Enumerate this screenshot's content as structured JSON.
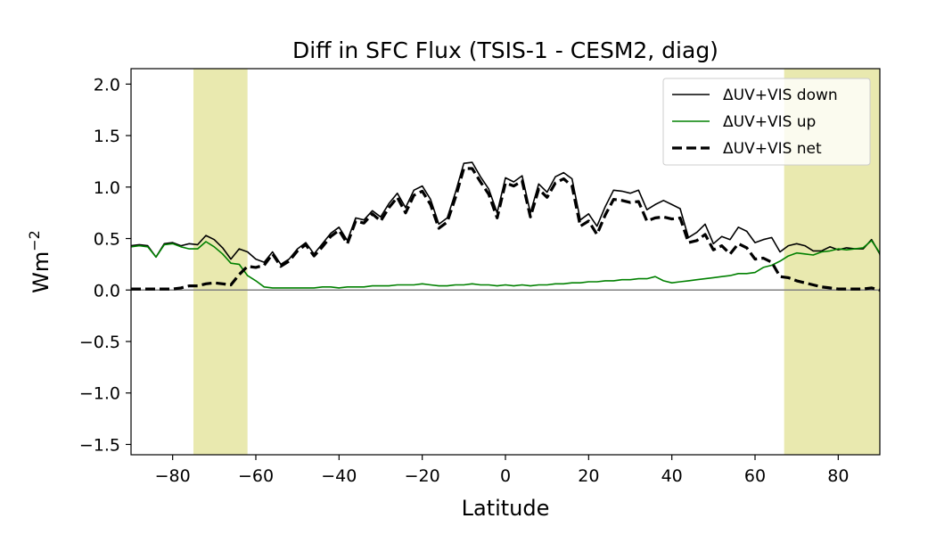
{
  "chart_data": {
    "type": "line",
    "title": "Diff in SFC Flux (TSIS-1 - CESM2, diag)",
    "xlabel": "Latitude",
    "ylabel": "Wm",
    "ylabel_exponent": "−2",
    "xlim": [
      -90,
      90
    ],
    "ylim": [
      -1.6,
      2.15
    ],
    "xticks": [
      -80,
      -60,
      -40,
      -20,
      0,
      20,
      40,
      60,
      80
    ],
    "xtick_labels": [
      "−80",
      "−60",
      "−40",
      "−20",
      "0",
      "20",
      "40",
      "60",
      "80"
    ],
    "yticks": [
      -1.5,
      -1.0,
      -0.5,
      0.0,
      0.5,
      1.0,
      1.5,
      2.0
    ],
    "ytick_labels": [
      "−1.5",
      "−1.0",
      "−0.5",
      "0.0",
      "0.5",
      "1.0",
      "1.5",
      "2.0"
    ],
    "legend_position": "top-right",
    "grid": false,
    "shaded_bands": [
      [
        -75,
        -62
      ],
      [
        67,
        90
      ]
    ],
    "shade_color": "#e9e9af",
    "zero_line_color": "#808080",
    "series": [
      {
        "name": "ΔUV+VIS down",
        "color": "#000000",
        "style": "solid",
        "points": [
          [
            -90,
            0.43
          ],
          [
            -88,
            0.44
          ],
          [
            -86,
            0.43
          ],
          [
            -84,
            0.32
          ],
          [
            -82,
            0.45
          ],
          [
            -80,
            0.46
          ],
          [
            -78,
            0.43
          ],
          [
            -76,
            0.45
          ],
          [
            -74,
            0.44
          ],
          [
            -72,
            0.53
          ],
          [
            -70,
            0.49
          ],
          [
            -68,
            0.41
          ],
          [
            -66,
            0.3
          ],
          [
            -64,
            0.4
          ],
          [
            -62,
            0.37
          ],
          [
            -60,
            0.3
          ],
          [
            -58,
            0.27
          ],
          [
            -56,
            0.37
          ],
          [
            -54,
            0.25
          ],
          [
            -52,
            0.3
          ],
          [
            -50,
            0.4
          ],
          [
            -48,
            0.46
          ],
          [
            -46,
            0.35
          ],
          [
            -44,
            0.45
          ],
          [
            -42,
            0.55
          ],
          [
            -40,
            0.61
          ],
          [
            -38,
            0.48
          ],
          [
            -36,
            0.7
          ],
          [
            -34,
            0.68
          ],
          [
            -32,
            0.77
          ],
          [
            -30,
            0.71
          ],
          [
            -28,
            0.84
          ],
          [
            -26,
            0.94
          ],
          [
            -24,
            0.8
          ],
          [
            -22,
            0.97
          ],
          [
            -20,
            1.01
          ],
          [
            -18,
            0.88
          ],
          [
            -16,
            0.64
          ],
          [
            -14,
            0.7
          ],
          [
            -12,
            0.95
          ],
          [
            -10,
            1.23
          ],
          [
            -8,
            1.24
          ],
          [
            -6,
            1.1
          ],
          [
            -4,
            0.98
          ],
          [
            -2,
            0.75
          ],
          [
            0,
            1.09
          ],
          [
            2,
            1.05
          ],
          [
            4,
            1.11
          ],
          [
            6,
            0.75
          ],
          [
            8,
            1.03
          ],
          [
            10,
            0.95
          ],
          [
            12,
            1.1
          ],
          [
            14,
            1.14
          ],
          [
            16,
            1.08
          ],
          [
            18,
            0.68
          ],
          [
            20,
            0.74
          ],
          [
            22,
            0.62
          ],
          [
            24,
            0.81
          ],
          [
            26,
            0.97
          ],
          [
            28,
            0.96
          ],
          [
            30,
            0.94
          ],
          [
            32,
            0.97
          ],
          [
            34,
            0.78
          ],
          [
            36,
            0.83
          ],
          [
            38,
            0.87
          ],
          [
            40,
            0.83
          ],
          [
            42,
            0.79
          ],
          [
            44,
            0.51
          ],
          [
            46,
            0.56
          ],
          [
            48,
            0.64
          ],
          [
            50,
            0.45
          ],
          [
            52,
            0.52
          ],
          [
            54,
            0.49
          ],
          [
            56,
            0.61
          ],
          [
            58,
            0.57
          ],
          [
            60,
            0.46
          ],
          [
            62,
            0.49
          ],
          [
            64,
            0.51
          ],
          [
            66,
            0.37
          ],
          [
            68,
            0.43
          ],
          [
            70,
            0.45
          ],
          [
            72,
            0.43
          ],
          [
            74,
            0.38
          ],
          [
            76,
            0.38
          ],
          [
            78,
            0.42
          ],
          [
            80,
            0.39
          ],
          [
            82,
            0.41
          ],
          [
            84,
            0.4
          ],
          [
            86,
            0.4
          ],
          [
            88,
            0.49
          ],
          [
            90,
            0.35
          ],
          [
            91,
            0.05
          ]
        ]
      },
      {
        "name": "ΔUV+VIS up",
        "color": "#008000",
        "style": "solid",
        "points": [
          [
            -90,
            0.42
          ],
          [
            -88,
            0.43
          ],
          [
            -86,
            0.42
          ],
          [
            -84,
            0.32
          ],
          [
            -82,
            0.44
          ],
          [
            -80,
            0.45
          ],
          [
            -78,
            0.42
          ],
          [
            -76,
            0.4
          ],
          [
            -74,
            0.4
          ],
          [
            -72,
            0.47
          ],
          [
            -70,
            0.42
          ],
          [
            -68,
            0.35
          ],
          [
            -66,
            0.26
          ],
          [
            -64,
            0.25
          ],
          [
            -62,
            0.14
          ],
          [
            -60,
            0.09
          ],
          [
            -58,
            0.03
          ],
          [
            -56,
            0.02
          ],
          [
            -54,
            0.02
          ],
          [
            -52,
            0.02
          ],
          [
            -50,
            0.02
          ],
          [
            -48,
            0.02
          ],
          [
            -46,
            0.02
          ],
          [
            -44,
            0.03
          ],
          [
            -42,
            0.03
          ],
          [
            -40,
            0.02
          ],
          [
            -38,
            0.03
          ],
          [
            -36,
            0.03
          ],
          [
            -34,
            0.03
          ],
          [
            -32,
            0.04
          ],
          [
            -30,
            0.04
          ],
          [
            -28,
            0.04
          ],
          [
            -26,
            0.05
          ],
          [
            -24,
            0.05
          ],
          [
            -22,
            0.05
          ],
          [
            -20,
            0.06
          ],
          [
            -18,
            0.05
          ],
          [
            -16,
            0.04
          ],
          [
            -14,
            0.04
          ],
          [
            -12,
            0.05
          ],
          [
            -10,
            0.05
          ],
          [
            -8,
            0.06
          ],
          [
            -6,
            0.05
          ],
          [
            -4,
            0.05
          ],
          [
            -2,
            0.04
          ],
          [
            0,
            0.05
          ],
          [
            2,
            0.04
          ],
          [
            4,
            0.05
          ],
          [
            6,
            0.04
          ],
          [
            8,
            0.05
          ],
          [
            10,
            0.05
          ],
          [
            12,
            0.06
          ],
          [
            14,
            0.06
          ],
          [
            16,
            0.07
          ],
          [
            18,
            0.07
          ],
          [
            20,
            0.08
          ],
          [
            22,
            0.08
          ],
          [
            24,
            0.09
          ],
          [
            26,
            0.09
          ],
          [
            28,
            0.1
          ],
          [
            30,
            0.1
          ],
          [
            32,
            0.11
          ],
          [
            34,
            0.11
          ],
          [
            36,
            0.13
          ],
          [
            38,
            0.09
          ],
          [
            40,
            0.07
          ],
          [
            42,
            0.08
          ],
          [
            44,
            0.09
          ],
          [
            46,
            0.1
          ],
          [
            48,
            0.11
          ],
          [
            50,
            0.12
          ],
          [
            52,
            0.13
          ],
          [
            54,
            0.14
          ],
          [
            56,
            0.16
          ],
          [
            58,
            0.16
          ],
          [
            60,
            0.17
          ],
          [
            62,
            0.22
          ],
          [
            64,
            0.24
          ],
          [
            66,
            0.28
          ],
          [
            68,
            0.33
          ],
          [
            70,
            0.36
          ],
          [
            72,
            0.35
          ],
          [
            74,
            0.34
          ],
          [
            76,
            0.37
          ],
          [
            78,
            0.38
          ],
          [
            80,
            0.4
          ],
          [
            82,
            0.39
          ],
          [
            84,
            0.4
          ],
          [
            86,
            0.41
          ],
          [
            88,
            0.48
          ],
          [
            90,
            0.36
          ],
          [
            91,
            0.07
          ]
        ]
      },
      {
        "name": "ΔUV+VIS net",
        "color": "#000000",
        "style": "dashed",
        "points": [
          [
            -90,
            0.01
          ],
          [
            -88,
            0.01
          ],
          [
            -86,
            0.01
          ],
          [
            -84,
            0.01
          ],
          [
            -82,
            0.01
          ],
          [
            -80,
            0.01
          ],
          [
            -78,
            0.02
          ],
          [
            -76,
            0.04
          ],
          [
            -74,
            0.04
          ],
          [
            -72,
            0.06
          ],
          [
            -70,
            0.07
          ],
          [
            -68,
            0.06
          ],
          [
            -66,
            0.05
          ],
          [
            -64,
            0.15
          ],
          [
            -62,
            0.23
          ],
          [
            -60,
            0.22
          ],
          [
            -58,
            0.24
          ],
          [
            -56,
            0.35
          ],
          [
            -54,
            0.23
          ],
          [
            -52,
            0.28
          ],
          [
            -50,
            0.38
          ],
          [
            -48,
            0.44
          ],
          [
            -46,
            0.33
          ],
          [
            -44,
            0.42
          ],
          [
            -42,
            0.52
          ],
          [
            -40,
            0.58
          ],
          [
            -38,
            0.45
          ],
          [
            -36,
            0.67
          ],
          [
            -34,
            0.65
          ],
          [
            -32,
            0.74
          ],
          [
            -30,
            0.67
          ],
          [
            -28,
            0.8
          ],
          [
            -26,
            0.9
          ],
          [
            -24,
            0.75
          ],
          [
            -22,
            0.92
          ],
          [
            -20,
            0.96
          ],
          [
            -18,
            0.83
          ],
          [
            -16,
            0.6
          ],
          [
            -14,
            0.66
          ],
          [
            -12,
            0.9
          ],
          [
            -10,
            1.18
          ],
          [
            -8,
            1.18
          ],
          [
            -6,
            1.05
          ],
          [
            -4,
            0.93
          ],
          [
            -2,
            0.7
          ],
          [
            0,
            1.04
          ],
          [
            2,
            1.01
          ],
          [
            4,
            1.06
          ],
          [
            6,
            0.71
          ],
          [
            8,
            0.98
          ],
          [
            10,
            0.9
          ],
          [
            12,
            1.04
          ],
          [
            14,
            1.08
          ],
          [
            16,
            1.01
          ],
          [
            18,
            0.62
          ],
          [
            20,
            0.67
          ],
          [
            22,
            0.54
          ],
          [
            24,
            0.73
          ],
          [
            26,
            0.88
          ],
          [
            28,
            0.87
          ],
          [
            30,
            0.85
          ],
          [
            32,
            0.86
          ],
          [
            34,
            0.67
          ],
          [
            36,
            0.7
          ],
          [
            38,
            0.71
          ],
          [
            40,
            0.69
          ],
          [
            42,
            0.7
          ],
          [
            44,
            0.46
          ],
          [
            46,
            0.48
          ],
          [
            48,
            0.54
          ],
          [
            50,
            0.39
          ],
          [
            52,
            0.43
          ],
          [
            54,
            0.35
          ],
          [
            56,
            0.45
          ],
          [
            58,
            0.41
          ],
          [
            60,
            0.3
          ],
          [
            62,
            0.31
          ],
          [
            64,
            0.27
          ],
          [
            66,
            0.13
          ],
          [
            68,
            0.12
          ],
          [
            70,
            0.09
          ],
          [
            72,
            0.07
          ],
          [
            74,
            0.05
          ],
          [
            76,
            0.03
          ],
          [
            78,
            0.02
          ],
          [
            80,
            0.01
          ],
          [
            82,
            0.01
          ],
          [
            84,
            0.01
          ],
          [
            86,
            0.01
          ],
          [
            88,
            0.02
          ],
          [
            90,
            0.0
          ],
          [
            91,
            -0.04
          ]
        ]
      }
    ]
  }
}
